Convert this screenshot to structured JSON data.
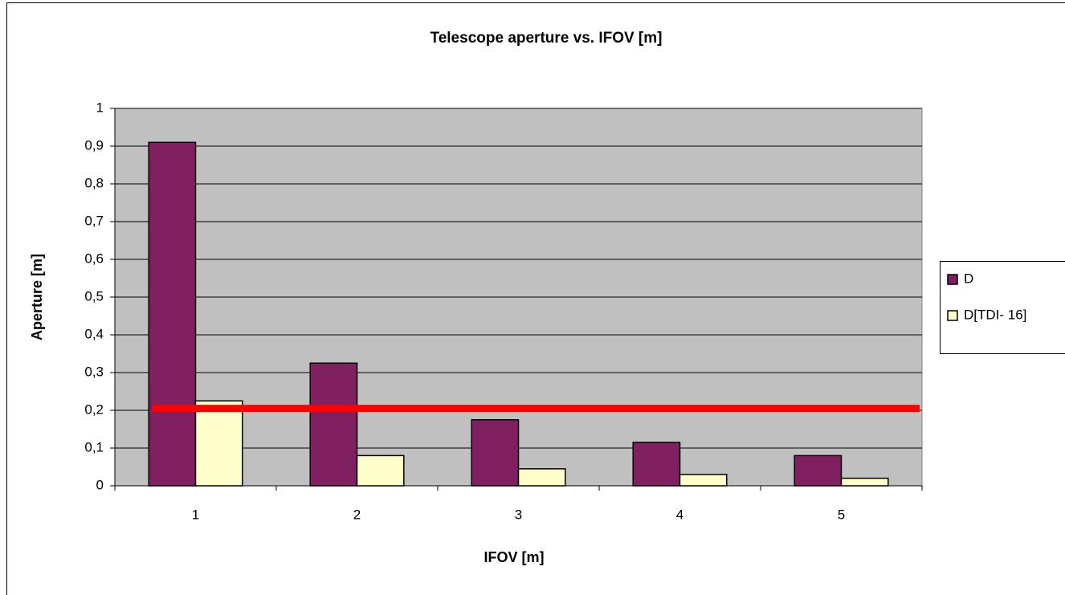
{
  "chart_data": {
    "type": "bar",
    "title": "Telescope aperture vs. IFOV [m]",
    "x_label": "IFOV [m]",
    "y_label": "Aperture [m]",
    "categories": [
      "1",
      "2",
      "3",
      "4",
      "5"
    ],
    "series": [
      {
        "name": "D",
        "color": "#802060",
        "values": [
          0.91,
          0.325,
          0.175,
          0.115,
          0.08
        ]
      },
      {
        "name": "D[TDI- 16]",
        "color": "#ffffcc",
        "values": [
          0.225,
          0.08,
          0.045,
          0.03,
          0.02
        ]
      }
    ],
    "reference_line": {
      "value": 0.205,
      "color": "#ff0000"
    },
    "ylim": [
      0,
      1
    ],
    "yticks": [
      0,
      {
        "value": 0.1,
        "label": "0,1"
      },
      {
        "value": 0.2,
        "label": "0,2"
      },
      {
        "value": 0.3,
        "label": "0,3"
      },
      {
        "value": 0.4,
        "label": "0,4"
      },
      {
        "value": 0.5,
        "label": "0,5"
      },
      {
        "value": 0.6,
        "label": "0,6"
      },
      {
        "value": 0.7,
        "label": "0,7"
      },
      {
        "value": 0.8,
        "label": "0,8"
      },
      {
        "value": 0.9,
        "label": "0,9"
      },
      1
    ],
    "grid": true,
    "legend": "right"
  }
}
